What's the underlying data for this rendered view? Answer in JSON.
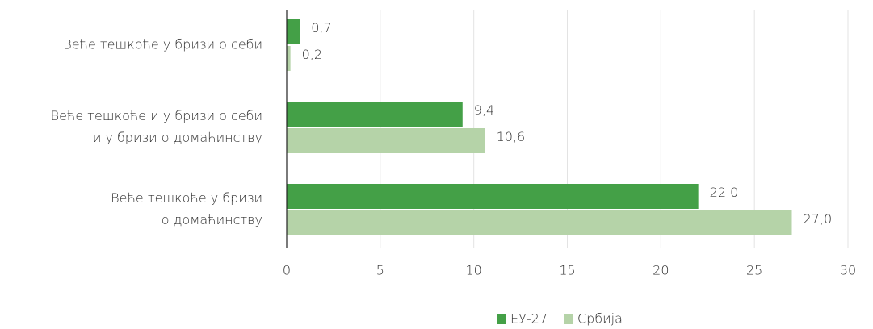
{
  "chart_data": {
    "type": "bar",
    "orientation": "horizontal",
    "categories": [
      [
        "Веће тешкоће у бризи о себи"
      ],
      [
        "Веће тешкоће и у бризи о себи",
        "и у бризи о домаћинству"
      ],
      [
        "Веће тешкоће у бризи",
        "о домаћинству"
      ]
    ],
    "series": [
      {
        "name": "ЕУ-27",
        "color": "#44a047",
        "values": [
          0.7,
          9.4,
          22.0
        ],
        "value_labels": [
          "0,7",
          "9,4",
          "22,0"
        ]
      },
      {
        "name": "Србија",
        "color": "#b5d3a8",
        "values": [
          0.2,
          10.6,
          27.0
        ],
        "value_labels": [
          "0,2",
          "10,6",
          "27,0"
        ]
      }
    ],
    "xlim": [
      0,
      30
    ],
    "xticks": [
      0,
      5,
      10,
      15,
      20,
      25,
      30
    ],
    "grid": true,
    "legend": "bottom"
  }
}
